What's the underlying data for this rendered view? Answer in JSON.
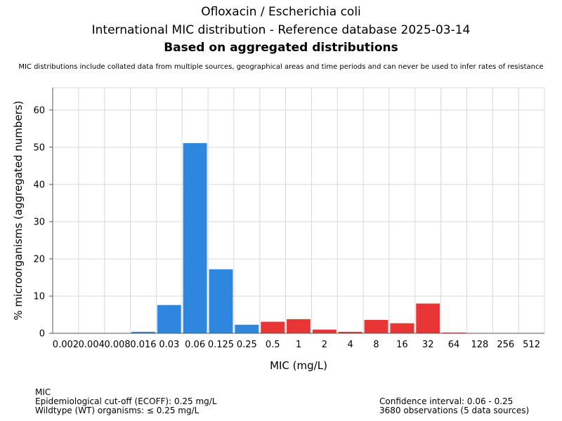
{
  "header": {
    "title_line1": "Ofloxacin / Escherichia coli",
    "title_line2": "International MIC distribution - Reference database 2025-03-14",
    "title_line3": "Based on aggregated distributions",
    "note": "MIC distributions include collated data from multiple sources, geographical areas and time periods and can never be used to infer rates of resistance"
  },
  "footer": {
    "left": [
      "MIC",
      "Epidemiological cut-off (ECOFF): 0.25 mg/L",
      "Wildtype (WT) organisms: ≤ 0.25 mg/L"
    ],
    "right": [
      "Confidence interval: 0.06 - 0.25",
      "3680 observations (5 data sources)"
    ]
  },
  "colors": {
    "wildtype": "#2e86de",
    "non_wildtype": "#e83535",
    "grid": "#d9d9d9",
    "axis": "#555555"
  },
  "chart_data": {
    "type": "bar",
    "xlabel": "MIC (mg/L)",
    "ylabel": "% microorganisms (aggregated numbers)",
    "ylim": [
      0,
      66
    ],
    "yticks": [
      0,
      10,
      20,
      30,
      40,
      50,
      60
    ],
    "grid": true,
    "categories": [
      "0.002",
      "0.004",
      "0.008",
      "0.016",
      "0.03",
      "0.06",
      "0.125",
      "0.25",
      "0.5",
      "1",
      "2",
      "4",
      "8",
      "16",
      "32",
      "64",
      "128",
      "256",
      "512"
    ],
    "values": [
      0,
      0,
      0,
      0.4,
      7.6,
      51.1,
      17.2,
      2.3,
      3.1,
      3.8,
      1.0,
      0.4,
      3.6,
      2.7,
      8.0,
      0.2,
      0,
      0,
      0
    ],
    "wildtype_max_index": 7
  }
}
